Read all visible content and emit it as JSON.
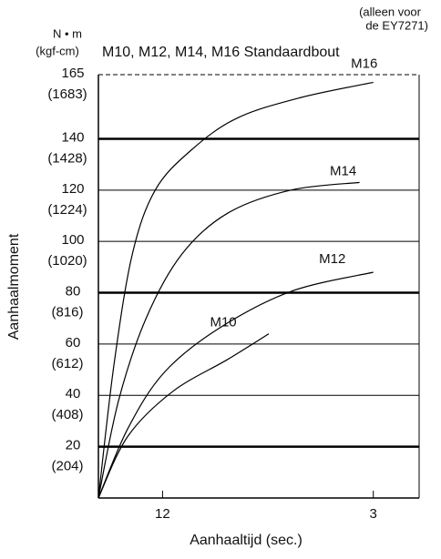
{
  "chart_data": {
    "type": "line",
    "title": "M10, M12, M14, M16 Standaardbout",
    "note": [
      "(alleen voor",
      "de EY7271)"
    ],
    "y_unit": [
      "N • m",
      "(kgf-cm)"
    ],
    "ylabel": "Aanhaalmoment",
    "xlabel": "Aanhaaltijd (sec.)",
    "xlim": [
      0,
      3.5
    ],
    "xticks": [
      {
        "value": 0.7,
        "label": "12"
      },
      3
    ],
    "ylim": [
      0,
      165
    ],
    "yticks": [
      20,
      40,
      60,
      80,
      100,
      120,
      140,
      165
    ],
    "ytick_sublabels": [
      "(204)",
      "(408)",
      "(612)",
      "(816)",
      "(1020)",
      "(1224)",
      "(1428)",
      "(1683)"
    ],
    "thick_grid": [
      20,
      80,
      140
    ],
    "dashed_grid": [
      165
    ],
    "series": [
      {
        "name": "M16",
        "color": "#000000",
        "x": [
          0,
          0.17,
          0.37,
          0.62,
          1.01,
          1.51,
          2.2,
          3.0
        ],
        "values": [
          0,
          52,
          95,
          120,
          135.5,
          148,
          156,
          162
        ]
      },
      {
        "name": "M14",
        "color": "#000000",
        "x": [
          0,
          0.22,
          0.52,
          0.91,
          1.41,
          2.1,
          2.85
        ],
        "values": [
          0,
          38,
          70,
          95,
          111,
          120,
          123
        ]
      },
      {
        "name": "M12",
        "color": "#000000",
        "x": [
          0,
          0.32,
          0.72,
          1.31,
          2.1,
          3.0
        ],
        "values": [
          0,
          27,
          49,
          66,
          80.5,
          88
        ]
      },
      {
        "name": "M10",
        "color": "#000000",
        "x": [
          0,
          0.32,
          0.81,
          1.41,
          1.86
        ],
        "values": [
          0,
          24,
          41.5,
          54,
          64
        ]
      }
    ]
  }
}
